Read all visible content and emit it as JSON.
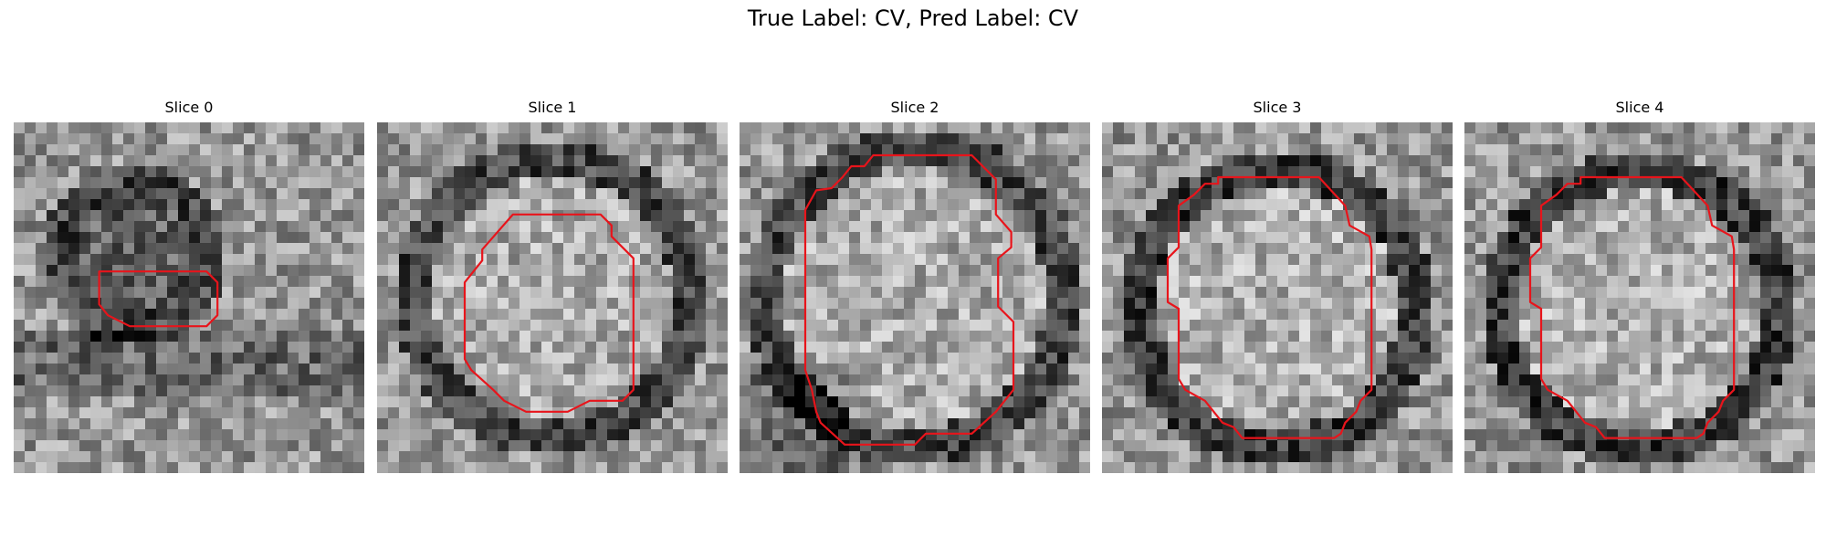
{
  "figure": {
    "suptitle": "True Label: CV, Pred Label: CV",
    "contour_color": "#e8141b",
    "colormap": "gray",
    "grid_size": 32,
    "axes_visible": false
  },
  "slices": [
    {
      "title": "Slice 0",
      "blob": {
        "cx": 11,
        "cy": 12,
        "r": 6,
        "interior": 95,
        "ring": 70
      },
      "contour": [
        [
          7.8,
          13.6
        ],
        [
          8.8,
          13.6
        ],
        [
          13.6,
          13.6
        ],
        [
          13.6,
          13.6
        ],
        [
          15.6,
          13.6
        ],
        [
          17.6,
          13.6
        ],
        [
          18.6,
          14.6
        ],
        [
          18.6,
          17.6
        ],
        [
          17.6,
          18.6
        ],
        [
          10.6,
          18.6
        ],
        [
          8.6,
          17.6
        ],
        [
          7.8,
          16.6
        ]
      ]
    },
    {
      "title": "Slice 1",
      "blob": {
        "cx": 16,
        "cy": 16,
        "r": 12,
        "interior": 170,
        "ring": 70
      },
      "contour": [
        [
          12.4,
          8.4
        ],
        [
          20.4,
          8.4
        ],
        [
          21.4,
          9.4
        ],
        [
          21.4,
          10.4
        ],
        [
          23.4,
          12.4
        ],
        [
          23.4,
          24.4
        ],
        [
          22.4,
          25.4
        ],
        [
          19.4,
          25.4
        ],
        [
          17.4,
          26.4
        ],
        [
          13.6,
          26.4
        ],
        [
          11.6,
          25.4
        ],
        [
          10.6,
          24.4
        ],
        [
          8.6,
          22.6
        ],
        [
          8.0,
          21.6
        ],
        [
          8.0,
          14.6
        ],
        [
          9.6,
          12.6
        ],
        [
          9.6,
          11.6
        ],
        [
          12.4,
          8.4
        ]
      ]
    },
    {
      "title": "Slice 2",
      "blob": {
        "cx": 16,
        "cy": 16,
        "r": 13,
        "interior": 170,
        "ring": 70
      },
      "contour": [
        [
          13.0,
          3.0
        ],
        [
          21.2,
          3.0
        ],
        [
          23.4,
          5.2
        ],
        [
          23.4,
          8.4
        ],
        [
          24.8,
          10.0
        ],
        [
          24.8,
          11.4
        ],
        [
          23.6,
          12.4
        ],
        [
          23.6,
          16.8
        ],
        [
          25.0,
          18.2
        ],
        [
          25.0,
          24.4
        ],
        [
          23.4,
          26.4
        ],
        [
          21.2,
          28.4
        ],
        [
          17.0,
          28.4
        ],
        [
          16.0,
          29.4
        ],
        [
          9.6,
          29.4
        ],
        [
          7.4,
          27.4
        ],
        [
          7.0,
          26.4
        ],
        [
          6.6,
          24.4
        ],
        [
          6.0,
          22.6
        ],
        [
          6.0,
          8.0
        ],
        [
          7.0,
          6.2
        ],
        [
          8.4,
          6.0
        ],
        [
          9.4,
          5.0
        ],
        [
          10.2,
          4.0
        ],
        [
          11.4,
          4.0
        ],
        [
          12.2,
          3.0
        ]
      ]
    },
    {
      "title": "Slice 3",
      "blob": {
        "cx": 16,
        "cy": 17,
        "r": 12,
        "interior": 175,
        "ring": 60
      },
      "contour": [
        [
          10.6,
          5.0
        ],
        [
          19.8,
          5.0
        ],
        [
          22.2,
          7.6
        ],
        [
          22.6,
          9.4
        ],
        [
          24.4,
          10.4
        ],
        [
          24.6,
          11.6
        ],
        [
          24.6,
          24.4
        ],
        [
          23.6,
          25.4
        ],
        [
          23.2,
          26.4
        ],
        [
          22.2,
          27.4
        ],
        [
          21.8,
          28.4
        ],
        [
          21.2,
          28.8
        ],
        [
          12.8,
          28.8
        ],
        [
          12.0,
          27.8
        ],
        [
          11.0,
          27.4
        ],
        [
          9.4,
          25.4
        ],
        [
          7.6,
          24.4
        ],
        [
          7.0,
          23.4
        ],
        [
          7.0,
          17.0
        ],
        [
          6.0,
          16.4
        ],
        [
          6.0,
          12.4
        ],
        [
          7.0,
          11.4
        ],
        [
          7.0,
          7.6
        ],
        [
          8.4,
          6.6
        ],
        [
          9.4,
          5.6
        ],
        [
          10.6,
          5.6
        ],
        [
          10.6,
          5.0
        ]
      ]
    },
    {
      "title": "Slice 4",
      "blob": {
        "cx": 16,
        "cy": 17,
        "r": 12,
        "interior": 175,
        "ring": 60
      },
      "contour": [
        [
          10.6,
          5.0
        ],
        [
          19.8,
          5.0
        ],
        [
          22.2,
          7.6
        ],
        [
          22.6,
          9.4
        ],
        [
          24.4,
          10.4
        ],
        [
          24.6,
          11.6
        ],
        [
          24.6,
          24.4
        ],
        [
          23.6,
          25.4
        ],
        [
          23.2,
          26.4
        ],
        [
          22.2,
          27.4
        ],
        [
          21.8,
          28.4
        ],
        [
          21.2,
          28.8
        ],
        [
          12.8,
          28.8
        ],
        [
          12.0,
          27.8
        ],
        [
          11.0,
          27.4
        ],
        [
          9.4,
          25.4
        ],
        [
          7.6,
          24.4
        ],
        [
          7.0,
          23.4
        ],
        [
          7.0,
          17.0
        ],
        [
          6.0,
          16.4
        ],
        [
          6.0,
          12.4
        ],
        [
          7.0,
          11.4
        ],
        [
          7.0,
          7.6
        ],
        [
          8.4,
          6.6
        ],
        [
          9.4,
          5.6
        ],
        [
          10.6,
          5.6
        ],
        [
          10.6,
          5.0
        ]
      ]
    }
  ]
}
